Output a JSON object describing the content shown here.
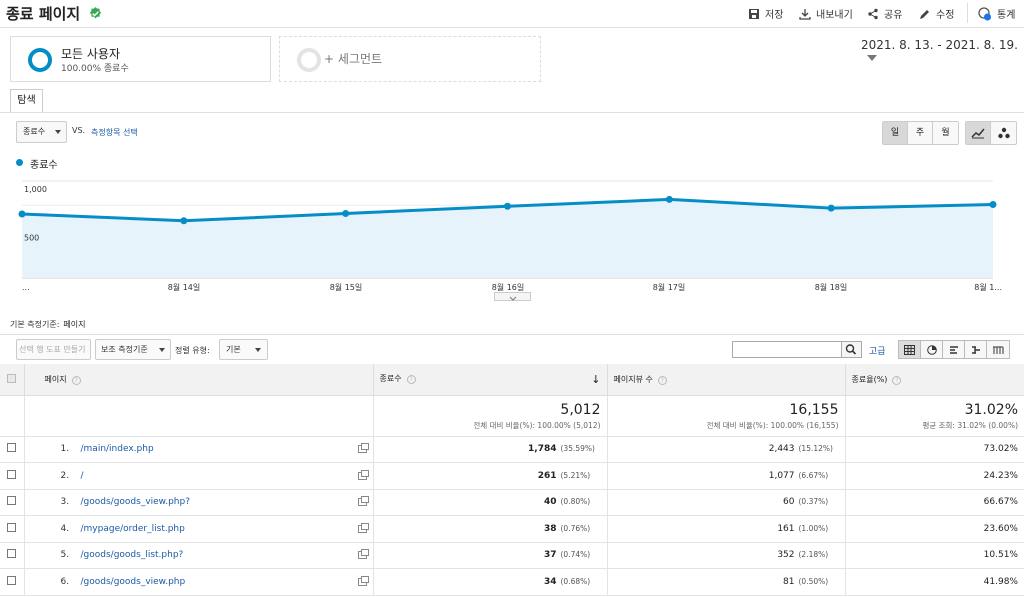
{
  "header": {
    "title": "종료 페이지",
    "toolbar": [
      {
        "label": "저장",
        "icon": "save-icon"
      },
      {
        "label": "내보내기",
        "icon": "export-icon"
      },
      {
        "label": "공유",
        "icon": "share-icon"
      },
      {
        "label": "수정",
        "icon": "edit-icon"
      },
      {
        "label": "통계",
        "icon": "insights-icon",
        "badge": "1"
      }
    ]
  },
  "segments": {
    "active": {
      "name": "모든 사용자",
      "sub": "100.00% 종료수"
    },
    "add_label": "+ 세그먼트"
  },
  "date_range": "2021. 8. 13. - 2021. 8. 19.",
  "tab": "탐색",
  "metric": {
    "selected": "종료수",
    "vs": "VS.",
    "compare_link": "측정항목 선택",
    "granularity": [
      "일",
      "주",
      "월"
    ],
    "granularity_active": "일"
  },
  "chart_data": {
    "type": "line",
    "legend": "종료수",
    "x_labels": [
      "...",
      "8월 14일",
      "8월 15일",
      "8월 16일",
      "8월 17일",
      "8월 18일",
      "8월 1..."
    ],
    "y_ticks": [
      "1,000",
      "500"
    ],
    "ylim": [
      0,
      1000
    ],
    "values": [
      660,
      590,
      665,
      740,
      810,
      720,
      758
    ],
    "color": "#058dc7",
    "fill": "#e7f3fa"
  },
  "dimension": {
    "label": "기본 측정기준:",
    "value": "페이지"
  },
  "controls": {
    "make_chart": "선택 행 도표 만들기",
    "secondary": "보조 측정기준",
    "sort_label": "정렬 유형:",
    "sort_value": "기본",
    "advanced": "고급"
  },
  "table": {
    "headers": {
      "page": "페이지",
      "exits": "종료수",
      "pageviews": "페이지뷰 수",
      "exit_rate": "종료율(%)"
    },
    "totals": {
      "exits": "5,012",
      "exits_sub": "전체 대비 비율(%): 100.00% (5,012)",
      "pageviews": "16,155",
      "pageviews_sub": "전체 대비 비율(%): 100.00% (16,155)",
      "exit_rate": "31.02%",
      "exit_rate_sub": "평균 조회: 31.02% (0.00%)"
    },
    "rows": [
      {
        "idx": "1.",
        "page": "/main/index.php",
        "exits": "1,784",
        "exits_pct": "(35.59%)",
        "pv": "2,443",
        "pv_pct": "(15.12%)",
        "rate": "73.02%"
      },
      {
        "idx": "2.",
        "page": "/",
        "exits": "261",
        "exits_pct": "(5.21%)",
        "pv": "1,077",
        "pv_pct": "(6.67%)",
        "rate": "24.23%"
      },
      {
        "idx": "3.",
        "page": "/goods/goods_view.php?",
        "exits": "40",
        "exits_pct": "(0.80%)",
        "pv": "60",
        "pv_pct": "(0.37%)",
        "rate": "66.67%"
      },
      {
        "idx": "4.",
        "page": "/mypage/order_list.php",
        "exits": "38",
        "exits_pct": "(0.76%)",
        "pv": "161",
        "pv_pct": "(1.00%)",
        "rate": "23.60%"
      },
      {
        "idx": "5.",
        "page": "/goods/goods_list.php?",
        "exits": "37",
        "exits_pct": "(0.74%)",
        "pv": "352",
        "pv_pct": "(2.18%)",
        "rate": "10.51%"
      },
      {
        "idx": "6.",
        "page": "/goods/goods_view.php",
        "exits": "34",
        "exits_pct": "(0.68%)",
        "pv": "81",
        "pv_pct": "(0.50%)",
        "rate": "41.98%"
      }
    ]
  }
}
